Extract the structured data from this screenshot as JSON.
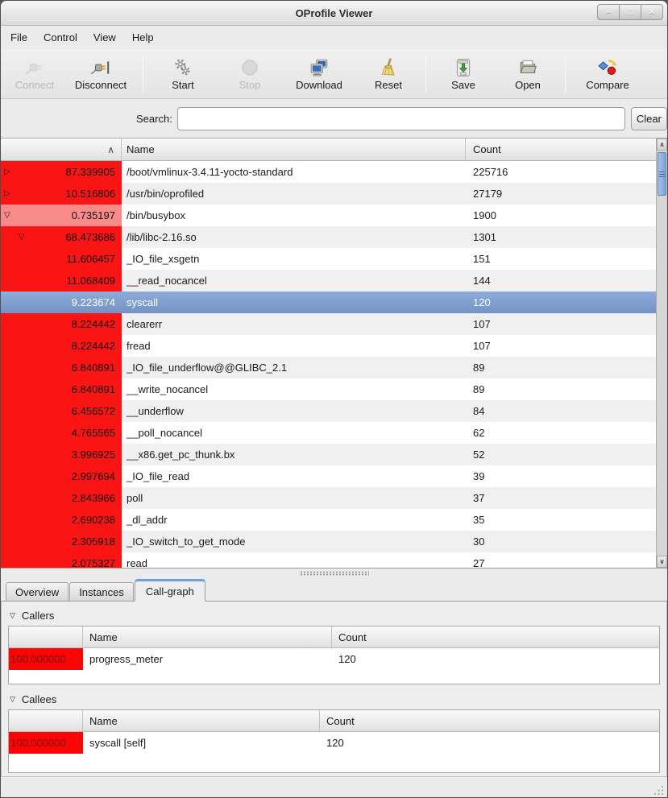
{
  "colors": {
    "row_red": "#fa1414",
    "row_pink": "#f98a8a",
    "selection_blue": "#7392c5",
    "cg_red": "#fb0606",
    "cg_red_text": "#7f0c0c",
    "tab_accent": "#6fa0da",
    "scroll_thumb": "#7fa2d3"
  },
  "window": {
    "title": "OProfile Viewer",
    "controls": [
      {
        "name": "minimize",
        "glyph": "–"
      },
      {
        "name": "maximize",
        "glyph": "□"
      },
      {
        "name": "close",
        "glyph": "×"
      }
    ]
  },
  "menubar": {
    "items": [
      "File",
      "Control",
      "View",
      "Help"
    ]
  },
  "toolbar": {
    "items": [
      {
        "type": "button",
        "label": "Connect",
        "icon": "connect-icon",
        "enabled": false
      },
      {
        "type": "button",
        "label": "Disconnect",
        "icon": "disconnect-icon",
        "enabled": true
      },
      {
        "type": "separator"
      },
      {
        "type": "button",
        "label": "Start",
        "icon": "start-gears-icon",
        "enabled": true
      },
      {
        "type": "button",
        "label": "Stop",
        "icon": "stop-octagon-icon",
        "enabled": false
      },
      {
        "type": "button",
        "label": "Download",
        "icon": "download-computer-icon",
        "enabled": true
      },
      {
        "type": "button",
        "label": "Reset",
        "icon": "reset-broom-icon",
        "enabled": true
      },
      {
        "type": "separator"
      },
      {
        "type": "button",
        "label": "Save",
        "icon": "save-icon",
        "enabled": true
      },
      {
        "type": "button",
        "label": "Open",
        "icon": "open-folder-icon",
        "enabled": true
      },
      {
        "type": "separator"
      },
      {
        "type": "button",
        "label": "Compare",
        "icon": "compare-icon",
        "enabled": true
      }
    ]
  },
  "search": {
    "label": "Search:",
    "value": "",
    "clear_label": "Clear"
  },
  "main_table": {
    "columns": {
      "percent": "",
      "name": "Name",
      "count": "Count"
    },
    "sort_indicator": "ascending",
    "rows": [
      {
        "percent": "87.339905",
        "name": "/boot/vmlinux-3.4.11-yocto-standard",
        "count": "225716",
        "expander": "collapsed",
        "indent": 0,
        "cell": "red",
        "selected": false
      },
      {
        "percent": "10.516806",
        "name": "/usr/bin/oprofiled",
        "count": "27179",
        "expander": "collapsed",
        "indent": 0,
        "cell": "red",
        "selected": false
      },
      {
        "percent": "0.735197",
        "name": "/bin/busybox",
        "count": "1900",
        "expander": "expanded",
        "indent": 0,
        "cell": "pink",
        "selected": false
      },
      {
        "percent": "68.473686",
        "name": "/lib/libc-2.16.so",
        "count": "1301",
        "expander": "expanded",
        "indent": 1,
        "cell": "red",
        "selected": false
      },
      {
        "percent": "11.606457",
        "name": "_IO_file_xsgetn",
        "count": "151",
        "expander": null,
        "indent": 2,
        "cell": "red",
        "selected": false
      },
      {
        "percent": "11.068409",
        "name": "__read_nocancel",
        "count": "144",
        "expander": null,
        "indent": 2,
        "cell": "red",
        "selected": false
      },
      {
        "percent": "9.223674",
        "name": "syscall",
        "count": "120",
        "expander": null,
        "indent": 2,
        "cell": "red",
        "selected": true
      },
      {
        "percent": "8.224442",
        "name": "clearerr",
        "count": "107",
        "expander": null,
        "indent": 2,
        "cell": "red",
        "selected": false
      },
      {
        "percent": "8.224442",
        "name": "fread",
        "count": "107",
        "expander": null,
        "indent": 2,
        "cell": "red",
        "selected": false
      },
      {
        "percent": "6.840891",
        "name": "_IO_file_underflow@@GLIBC_2.1",
        "count": "89",
        "expander": null,
        "indent": 2,
        "cell": "red",
        "selected": false
      },
      {
        "percent": "6.840891",
        "name": "__write_nocancel",
        "count": "89",
        "expander": null,
        "indent": 2,
        "cell": "red",
        "selected": false
      },
      {
        "percent": "6.456572",
        "name": "__underflow",
        "count": "84",
        "expander": null,
        "indent": 2,
        "cell": "red",
        "selected": false
      },
      {
        "percent": "4.765565",
        "name": "__poll_nocancel",
        "count": "62",
        "expander": null,
        "indent": 2,
        "cell": "red",
        "selected": false
      },
      {
        "percent": "3.996925",
        "name": "__x86.get_pc_thunk.bx",
        "count": "52",
        "expander": null,
        "indent": 2,
        "cell": "red",
        "selected": false
      },
      {
        "percent": "2.997694",
        "name": "_IO_file_read",
        "count": "39",
        "expander": null,
        "indent": 2,
        "cell": "red",
        "selected": false
      },
      {
        "percent": "2.843966",
        "name": "poll",
        "count": "37",
        "expander": null,
        "indent": 2,
        "cell": "red",
        "selected": false
      },
      {
        "percent": "2.690238",
        "name": "_dl_addr",
        "count": "35",
        "expander": null,
        "indent": 2,
        "cell": "red",
        "selected": false
      },
      {
        "percent": "2.305918",
        "name": "_IO_switch_to_get_mode",
        "count": "30",
        "expander": null,
        "indent": 2,
        "cell": "red",
        "selected": false
      },
      {
        "percent": "2.075327",
        "name": "read",
        "count": "27",
        "expander": null,
        "indent": 2,
        "cell": "red",
        "selected": false
      }
    ]
  },
  "bottom_pane": {
    "tabs": [
      {
        "label": "Overview",
        "active": false
      },
      {
        "label": "Instances",
        "active": false
      },
      {
        "label": "Call-graph",
        "active": true
      }
    ],
    "callers": {
      "title": "Callers",
      "columns": {
        "percent": "",
        "name": "Name",
        "count": "Count"
      },
      "rows": [
        {
          "percent": "100.000000",
          "name": "progress_meter",
          "count": "120"
        }
      ]
    },
    "callees": {
      "title": "Callees",
      "columns": {
        "percent": "",
        "name": "Name",
        "count": "Count"
      },
      "rows": [
        {
          "percent": "100.000000",
          "name": "syscall [self]",
          "count": "120"
        }
      ]
    }
  }
}
